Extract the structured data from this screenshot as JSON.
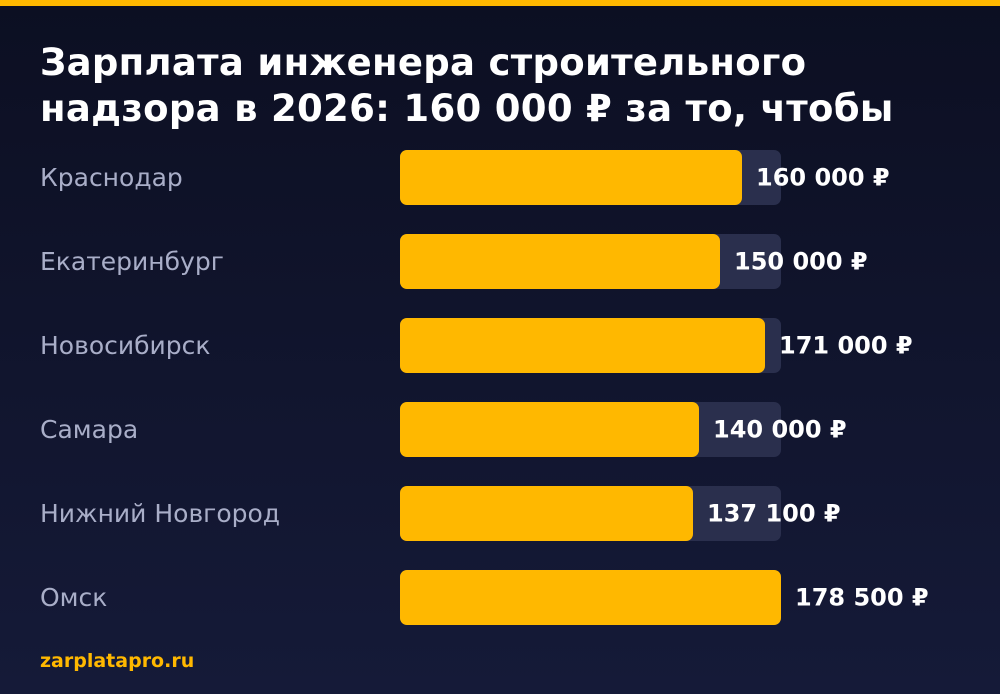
{
  "header": {
    "title_line1": "Зарплата инженера строительного",
    "title_line2": "надзора в 2026: 160 000 ₽ за то, чтобы"
  },
  "colors": {
    "accent": "#ffb800",
    "track": "#2a2f4d",
    "category_text": "#a9aec8",
    "value_text": "#ffffff"
  },
  "chart_data": {
    "type": "bar",
    "orientation": "horizontal",
    "categories": [
      "Краснодар",
      "Екатеринбург",
      "Новосибирск",
      "Самара",
      "Нижний Новгород",
      "Омск"
    ],
    "values": [
      160000,
      150000,
      171000,
      140000,
      137100,
      178500
    ],
    "value_labels": [
      "160 000 ₽",
      "150 000 ₽",
      "171 000 ₽",
      "140 000 ₽",
      "137 100 ₽",
      "178 500 ₽"
    ],
    "xlim": [
      0,
      178500
    ]
  },
  "footer": {
    "source": "zarplatapro.ru"
  }
}
